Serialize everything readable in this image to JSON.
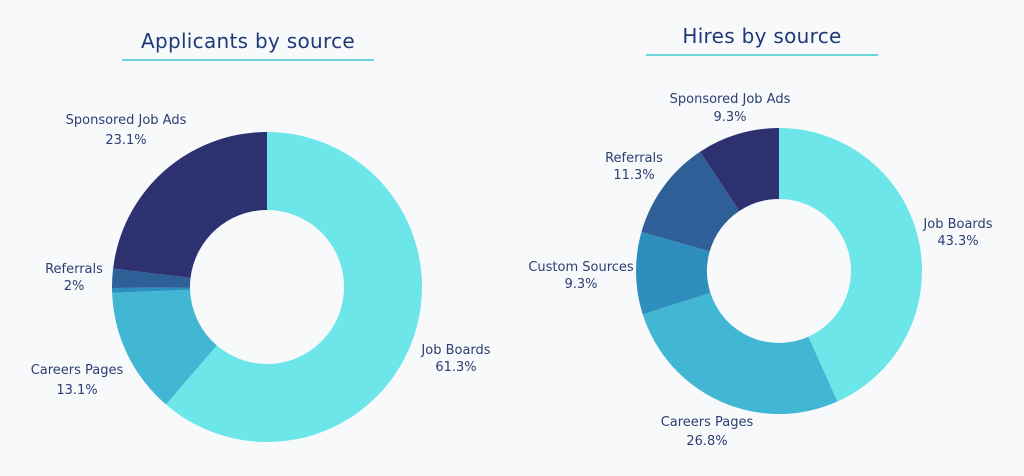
{
  "colors": {
    "job_boards": "#6ce6e8",
    "careers_pages": "#42b7d4",
    "custom_sources": "#2e8fbf",
    "referrals": "#2e5f97",
    "sponsored_job_ads": "#2e3170",
    "title_underline": "#3fc7cf",
    "background": "#f8f9fb"
  },
  "chart_data": [
    {
      "type": "pie",
      "title": "Applicants by source",
      "donut": true,
      "start": "top",
      "direction": "clockwise",
      "slices": [
        {
          "label": "Job Boards",
          "value": 61.3,
          "value_label": "61.3%",
          "color": "#6ce6e8"
        },
        {
          "label": "Careers Pages",
          "value": 13.1,
          "value_label": "13.1%",
          "color": "#42b7d4"
        },
        {
          "label": "",
          "value": 0.5,
          "value_label": "",
          "color": "#2e8fbf"
        },
        {
          "label": "Referrals",
          "value": 2,
          "value_label": "2%",
          "color": "#2e5f97"
        },
        {
          "label": "Sponsored Job Ads",
          "value": 23.1,
          "value_label": "23.1%",
          "color": "#2e3170"
        }
      ]
    },
    {
      "type": "pie",
      "title": "Hires by source",
      "donut": true,
      "start": "top",
      "direction": "clockwise",
      "slices": [
        {
          "label": "Job Boards",
          "value": 43.3,
          "value_label": "43.3%",
          "color": "#6ce6e8"
        },
        {
          "label": "Careers Pages",
          "value": 26.8,
          "value_label": "26.8%",
          "color": "#42b7d4"
        },
        {
          "label": "Custom Sources",
          "value": 9.3,
          "value_label": "9.3%",
          "color": "#2e8fbf"
        },
        {
          "label": "Referrals",
          "value": 11.3,
          "value_label": "11.3%",
          "color": "#2e5f97"
        },
        {
          "label": "Sponsored Job Ads",
          "value": 9.3,
          "value_label": "9.3%",
          "color": "#2e3170"
        }
      ]
    }
  ]
}
